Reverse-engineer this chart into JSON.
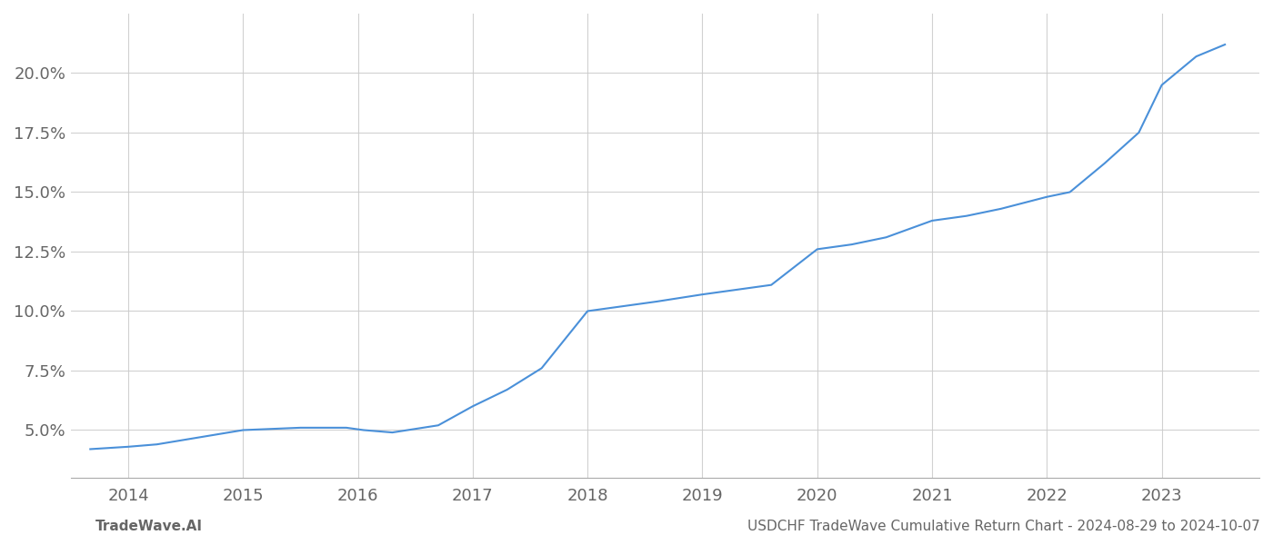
{
  "x_years": [
    2013.67,
    2014.0,
    2014.25,
    2015.0,
    2015.5,
    2015.9,
    2016.05,
    2016.3,
    2016.7,
    2017.0,
    2017.3,
    2017.6,
    2018.0,
    2018.3,
    2018.6,
    2019.0,
    2019.3,
    2019.6,
    2020.0,
    2020.3,
    2020.6,
    2021.0,
    2021.3,
    2021.6,
    2022.0,
    2022.2,
    2022.5,
    2022.8,
    2023.0,
    2023.3,
    2023.55
  ],
  "y_values": [
    0.042,
    0.043,
    0.044,
    0.05,
    0.051,
    0.051,
    0.05,
    0.049,
    0.052,
    0.06,
    0.067,
    0.076,
    0.1,
    0.102,
    0.104,
    0.107,
    0.109,
    0.111,
    0.126,
    0.128,
    0.131,
    0.138,
    0.14,
    0.143,
    0.148,
    0.15,
    0.162,
    0.175,
    0.195,
    0.207,
    0.212
  ],
  "line_color": "#4a90d9",
  "background_color": "#ffffff",
  "grid_color": "#cccccc",
  "text_color": "#666666",
  "footer_left": "TradeWave.AI",
  "footer_right": "USDCHF TradeWave Cumulative Return Chart - 2024-08-29 to 2024-10-07",
  "x_ticks": [
    2014,
    2015,
    2016,
    2017,
    2018,
    2019,
    2020,
    2021,
    2022,
    2023
  ],
  "y_ticks": [
    0.05,
    0.075,
    0.1,
    0.125,
    0.15,
    0.175,
    0.2
  ],
  "xlim": [
    2013.5,
    2023.85
  ],
  "ylim": [
    0.03,
    0.225
  ]
}
